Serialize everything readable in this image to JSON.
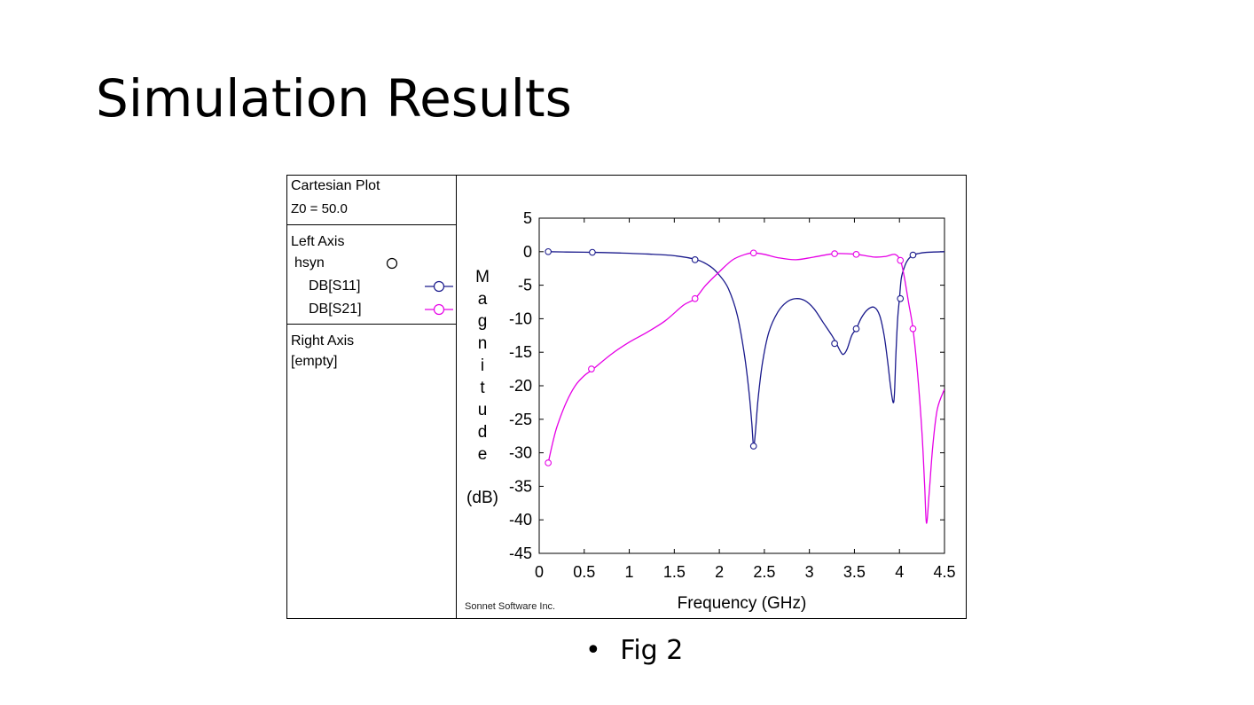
{
  "slide": {
    "title": "Simulation Results",
    "caption_bullet": "•",
    "caption": "Fig 2"
  },
  "legend": {
    "plot_type": "Cartesian Plot",
    "z0": "Z0 = 50.0",
    "left_axis_label": "Left Axis",
    "group_name": "hsyn",
    "right_axis_label": "Right Axis",
    "right_axis_value": "[empty]"
  },
  "footer": {
    "credit": "Sonnet Software Inc."
  },
  "colors": {
    "s11": "#1a1a8c",
    "s21": "#e600e6"
  },
  "chart_data": {
    "type": "line",
    "xlabel": "Frequency (GHz)",
    "ylabel_letters": [
      "M",
      "a",
      "g",
      "n",
      "i",
      "t",
      "u",
      "d",
      "e"
    ],
    "ylabel_unit": "(dB)",
    "xlim": [
      0,
      4.5
    ],
    "ylim": [
      -45,
      5
    ],
    "xticks": [
      0,
      0.5,
      1,
      1.5,
      2,
      2.5,
      3,
      3.5,
      4,
      4.5
    ],
    "xtick_labels": [
      "0",
      "0.5",
      "1",
      "1.5",
      "2",
      "2.5",
      "3",
      "3.5",
      "4",
      "4.5"
    ],
    "yticks": [
      5,
      0,
      -5,
      -10,
      -15,
      -20,
      -25,
      -30,
      -35,
      -40,
      -45
    ],
    "ytick_labels": [
      "5",
      "0",
      "-5",
      "-10",
      "-15",
      "-20",
      "-25",
      "-30",
      "-35",
      "-40",
      "-45"
    ],
    "grid": false,
    "series": [
      {
        "name": "DB[S11]",
        "color": "#1a1a8c",
        "x": [
          0.1,
          0.3,
          0.6,
          0.9,
          1.2,
          1.5,
          1.75,
          1.9,
          2.0,
          2.1,
          2.2,
          2.28,
          2.33,
          2.36,
          2.38,
          2.4,
          2.43,
          2.48,
          2.55,
          2.65,
          2.75,
          2.85,
          2.95,
          3.05,
          3.15,
          3.25,
          3.3,
          3.35,
          3.38,
          3.42,
          3.47,
          3.52,
          3.58,
          3.65,
          3.72,
          3.78,
          3.83,
          3.87,
          3.9,
          3.93,
          3.945,
          3.96,
          3.98,
          4.0,
          4.02,
          4.05,
          4.08,
          4.12,
          4.16,
          4.2,
          4.3,
          4.5
        ],
        "y": [
          0.0,
          -0.05,
          -0.1,
          -0.2,
          -0.35,
          -0.6,
          -1.2,
          -2.2,
          -3.5,
          -5.5,
          -9.5,
          -15.5,
          -21.0,
          -25.5,
          -29.0,
          -27.0,
          -22.0,
          -16.5,
          -12.0,
          -9.0,
          -7.5,
          -7.0,
          -7.3,
          -8.5,
          -10.5,
          -12.5,
          -13.7,
          -15.0,
          -15.3,
          -14.5,
          -12.5,
          -11.5,
          -9.8,
          -8.6,
          -8.3,
          -9.5,
          -12.5,
          -16.5,
          -20.0,
          -22.5,
          -21.0,
          -15.5,
          -10.0,
          -7.0,
          -4.0,
          -2.5,
          -1.5,
          -0.8,
          -0.5,
          -0.3,
          -0.1,
          0.0
        ],
        "markers_x": [
          0.1,
          0.59,
          1.73,
          2.38,
          3.28,
          3.52,
          4.01,
          4.15
        ],
        "markers_y": [
          0.0,
          -0.1,
          -1.2,
          -29.0,
          -13.7,
          -11.5,
          -7.0,
          -0.5
        ]
      },
      {
        "name": "DB[S21]",
        "color": "#e600e6",
        "x": [
          0.1,
          0.15,
          0.2,
          0.3,
          0.4,
          0.5,
          0.6,
          0.8,
          1.0,
          1.2,
          1.4,
          1.6,
          1.73,
          1.85,
          2.0,
          2.15,
          2.3,
          2.38,
          2.5,
          2.65,
          2.85,
          3.05,
          3.28,
          3.52,
          3.72,
          3.85,
          3.95,
          4.01,
          4.05,
          4.1,
          4.15,
          4.2,
          4.25,
          4.28,
          4.3,
          4.33,
          4.37,
          4.42,
          4.5
        ],
        "y": [
          -31.5,
          -28.5,
          -26.0,
          -22.5,
          -20.0,
          -18.5,
          -17.5,
          -15.3,
          -13.5,
          -12.0,
          -10.3,
          -8.0,
          -7.0,
          -5.0,
          -3.0,
          -1.2,
          -0.35,
          -0.2,
          -0.4,
          -0.9,
          -1.2,
          -0.8,
          -0.3,
          -0.4,
          -0.8,
          -0.7,
          -0.4,
          -1.3,
          -3.5,
          -7.5,
          -11.5,
          -18.0,
          -27.0,
          -35.0,
          -40.5,
          -36.0,
          -29.0,
          -23.5,
          -20.5
        ],
        "markers_x": [
          0.1,
          0.58,
          1.73,
          2.38,
          3.28,
          3.52,
          4.01,
          4.15
        ],
        "markers_y": [
          -31.5,
          -17.5,
          -7.0,
          -0.2,
          -0.3,
          -0.4,
          -1.3,
          -11.5
        ]
      }
    ]
  }
}
